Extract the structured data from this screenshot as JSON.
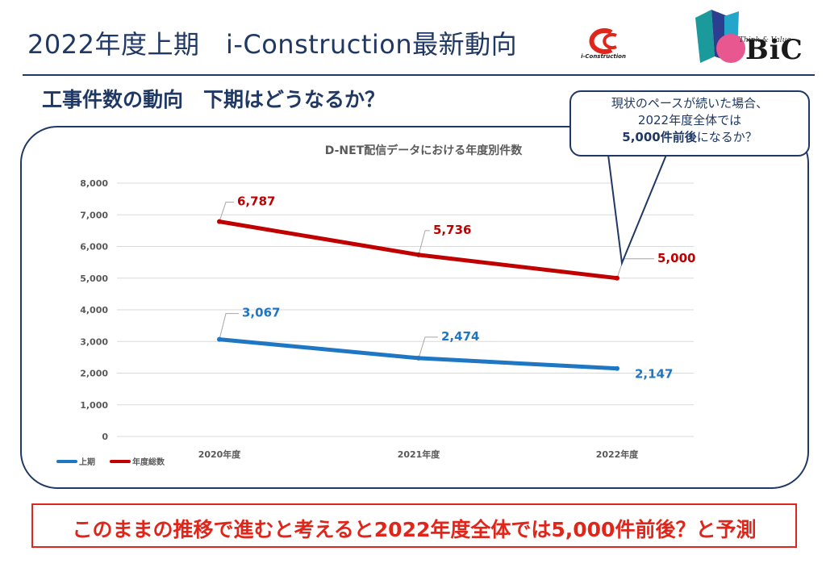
{
  "header": {
    "title": "2022年度上期　i-Construction最新動向",
    "ic_logo_text": "i-Construction",
    "bic_logo_text": "BiC",
    "bic_logo_script": "Think & Value"
  },
  "subtitle": "工事件数の動向　下期はどうなるか？",
  "callout": {
    "line1": "現状のペースが続いた場合、",
    "line2": "2022年度全体では",
    "line3_bold": "5,000件前後",
    "line3_rest": "になるか？"
  },
  "conclusion": "このままの推移で進むと考えると2022年度全体では5,000件前後？と予測",
  "colors": {
    "navy": "#1f3864",
    "series_first_half": "#1f77c4",
    "series_total": "#c00000",
    "conclusion_red": "#e0261b"
  },
  "chart_data": {
    "type": "line",
    "title": "D-NET配信データにおける年度別件数",
    "categories": [
      "2020年度",
      "2021年度",
      "2022年度"
    ],
    "ylim": [
      0,
      8000
    ],
    "yticks": [
      "0",
      "1,000",
      "2,000",
      "3,000",
      "4,000",
      "5,000",
      "6,000",
      "7,000",
      "8,000"
    ],
    "grid": true,
    "legend_position": "bottom-left",
    "series": [
      {
        "name": "上期",
        "values": [
          3067,
          2474,
          2147
        ],
        "labels": [
          "3,067",
          "2,474",
          "2,147"
        ],
        "color": "#1f77c4"
      },
      {
        "name": "年度総数",
        "values": [
          6787,
          5736,
          5000
        ],
        "labels": [
          "6,787",
          "5,736",
          "5,000"
        ],
        "color": "#c00000"
      }
    ]
  }
}
